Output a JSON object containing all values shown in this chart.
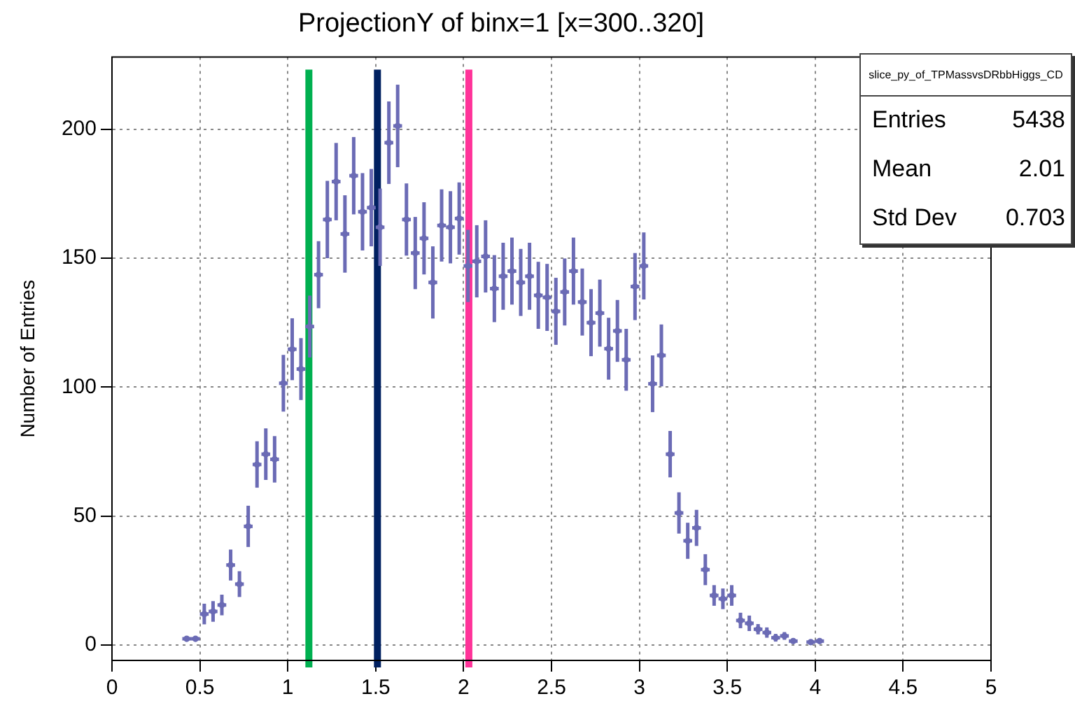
{
  "chart_data": {
    "type": "scatter",
    "title": "ProjectionY of binx=1 [x=300..320]",
    "ylabel": "Number of Entries",
    "x": [
      0.425,
      0.475,
      0.525,
      0.575,
      0.625,
      0.675,
      0.725,
      0.775,
      0.825,
      0.875,
      0.925,
      0.975,
      1.025,
      1.075,
      1.125,
      1.175,
      1.225,
      1.275,
      1.325,
      1.375,
      1.425,
      1.475,
      1.525,
      1.575,
      1.625,
      1.675,
      1.725,
      1.775,
      1.825,
      1.875,
      1.925,
      1.975,
      2.025,
      2.075,
      2.125,
      2.175,
      2.225,
      2.275,
      2.325,
      2.375,
      2.425,
      2.475,
      2.525,
      2.575,
      2.625,
      2.675,
      2.725,
      2.775,
      2.825,
      2.875,
      2.925,
      2.975,
      3.025,
      3.075,
      3.125,
      3.175,
      3.225,
      3.275,
      3.325,
      3.375,
      3.425,
      3.475,
      3.525,
      3.575,
      3.625,
      3.675,
      3.725,
      3.775,
      3.825,
      3.875,
      3.925,
      3.975,
      4.025
    ],
    "series": [
      {
        "color": "#6b6bb5",
        "values": [
          2.4,
          2.4,
          12,
          13,
          15.5,
          31,
          23.6,
          46,
          70,
          74,
          72,
          101.5,
          114.7,
          107,
          123.5,
          143.6,
          165,
          179.7,
          159.4,
          182,
          168,
          169.6,
          162,
          194.8,
          201.3,
          165,
          152,
          157.7,
          140.6,
          162.7,
          162,
          165.4,
          147,
          148.8,
          150.7,
          138.2,
          143,
          145,
          140.6,
          143,
          135.6,
          134.8,
          129.4,
          136.9,
          145,
          133,
          125,
          128.7,
          114.9,
          121.8,
          110.6,
          139,
          147,
          101.3,
          112.3,
          74,
          51.2,
          40.4,
          45.4,
          29.2,
          19.2,
          17.9,
          19.2,
          9.5,
          8.4,
          6.1,
          4.8,
          2.8,
          3.5,
          1.5,
          null,
          1.1,
          1.5
        ],
        "errors": [
          1,
          1,
          4,
          4,
          4,
          6,
          5,
          8,
          9,
          10,
          9,
          11,
          12,
          12,
          12,
          13,
          15,
          15,
          15,
          15,
          15,
          15,
          15,
          16,
          16,
          14,
          14,
          14,
          14,
          14,
          14,
          14,
          14,
          14,
          14,
          13,
          13,
          13,
          13,
          13,
          13,
          13,
          13,
          13,
          13,
          13,
          13,
          13,
          12,
          12,
          12,
          13,
          13,
          11,
          12,
          9,
          8,
          7,
          7,
          6,
          4,
          4,
          4,
          3,
          3,
          2,
          2,
          1.5,
          1.5,
          1,
          null,
          1,
          1
        ],
        "xerrors": [
          0.025,
          0.025,
          0.025,
          0.025,
          0.025,
          0.025,
          0.025,
          0.025,
          0.025,
          0.025,
          0.025,
          0.025,
          0.025,
          0.025,
          0.025,
          0.025,
          0.025,
          0.025,
          0.025,
          0.025,
          0.025,
          0.025,
          0.025,
          0.025,
          0.025,
          0.025,
          0.025,
          0.025,
          0.025,
          0.025,
          0.025,
          0.025,
          0.025,
          0.025,
          0.025,
          0.025,
          0.025,
          0.025,
          0.025,
          0.025,
          0.025,
          0.025,
          0.025,
          0.025,
          0.025,
          0.025,
          0.025,
          0.025,
          0.025,
          0.025,
          0.025,
          0.025,
          0.025,
          0.025,
          0.025,
          0.025,
          0.025,
          0.025,
          0.025,
          0.025,
          0.025,
          0.025,
          0.025,
          0.025,
          0.025,
          0.025,
          0.025,
          0.025,
          0.025,
          0.025,
          null,
          0.025,
          0.025
        ]
      }
    ],
    "xlim": [
      0,
      5
    ],
    "xticks": [
      0,
      0.5,
      1,
      1.5,
      2,
      2.5,
      3,
      3.5,
      4,
      4.5,
      5
    ],
    "ylim": [
      -6,
      228
    ],
    "yticks": [
      0,
      50,
      100,
      150,
      200
    ],
    "grid": true,
    "marker": "circle",
    "legend": false,
    "ref_lines": [
      {
        "axis": "x",
        "value": 1.12,
        "color": "#00b050"
      },
      {
        "axis": "x",
        "value": 1.51,
        "color": "#002060"
      },
      {
        "axis": "x",
        "value": 2.03,
        "color": "#ff3399"
      }
    ],
    "annotations": [
      "slice_py_of_TPMassvsDRbbHiggs_CD",
      "Entries",
      "5438",
      "Mean",
      "2.01",
      "Std Dev",
      "0.703"
    ]
  }
}
